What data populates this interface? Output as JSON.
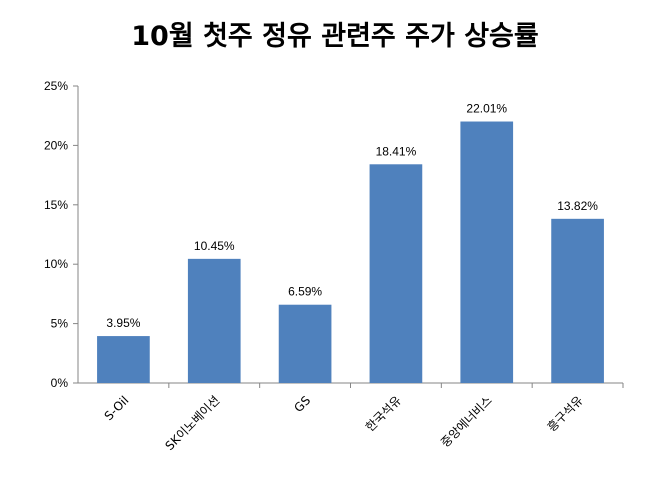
{
  "chart_data": {
    "type": "bar",
    "title": "10월 첫주  정유 관련주 주가 상승률",
    "xlabel": "",
    "ylabel": "",
    "categories": [
      "S-Oil",
      "SK이노베이션",
      "GS",
      "한국석유",
      "중앙에너비스",
      "흥구석유"
    ],
    "values": [
      3.95,
      10.45,
      6.59,
      18.41,
      22.01,
      13.82
    ],
    "data_labels": [
      "3.95%",
      "10.45%",
      "6.59%",
      "18.41%",
      "22.01%",
      "13.82%"
    ],
    "ylim": [
      0,
      25
    ],
    "yticks": [
      0,
      5,
      10,
      15,
      20,
      25
    ],
    "ytick_labels": [
      "0%",
      "5%",
      "10%",
      "15%",
      "20%",
      "25%"
    ],
    "bar_color": "#4f81bd",
    "grid": false,
    "legend": "none"
  }
}
